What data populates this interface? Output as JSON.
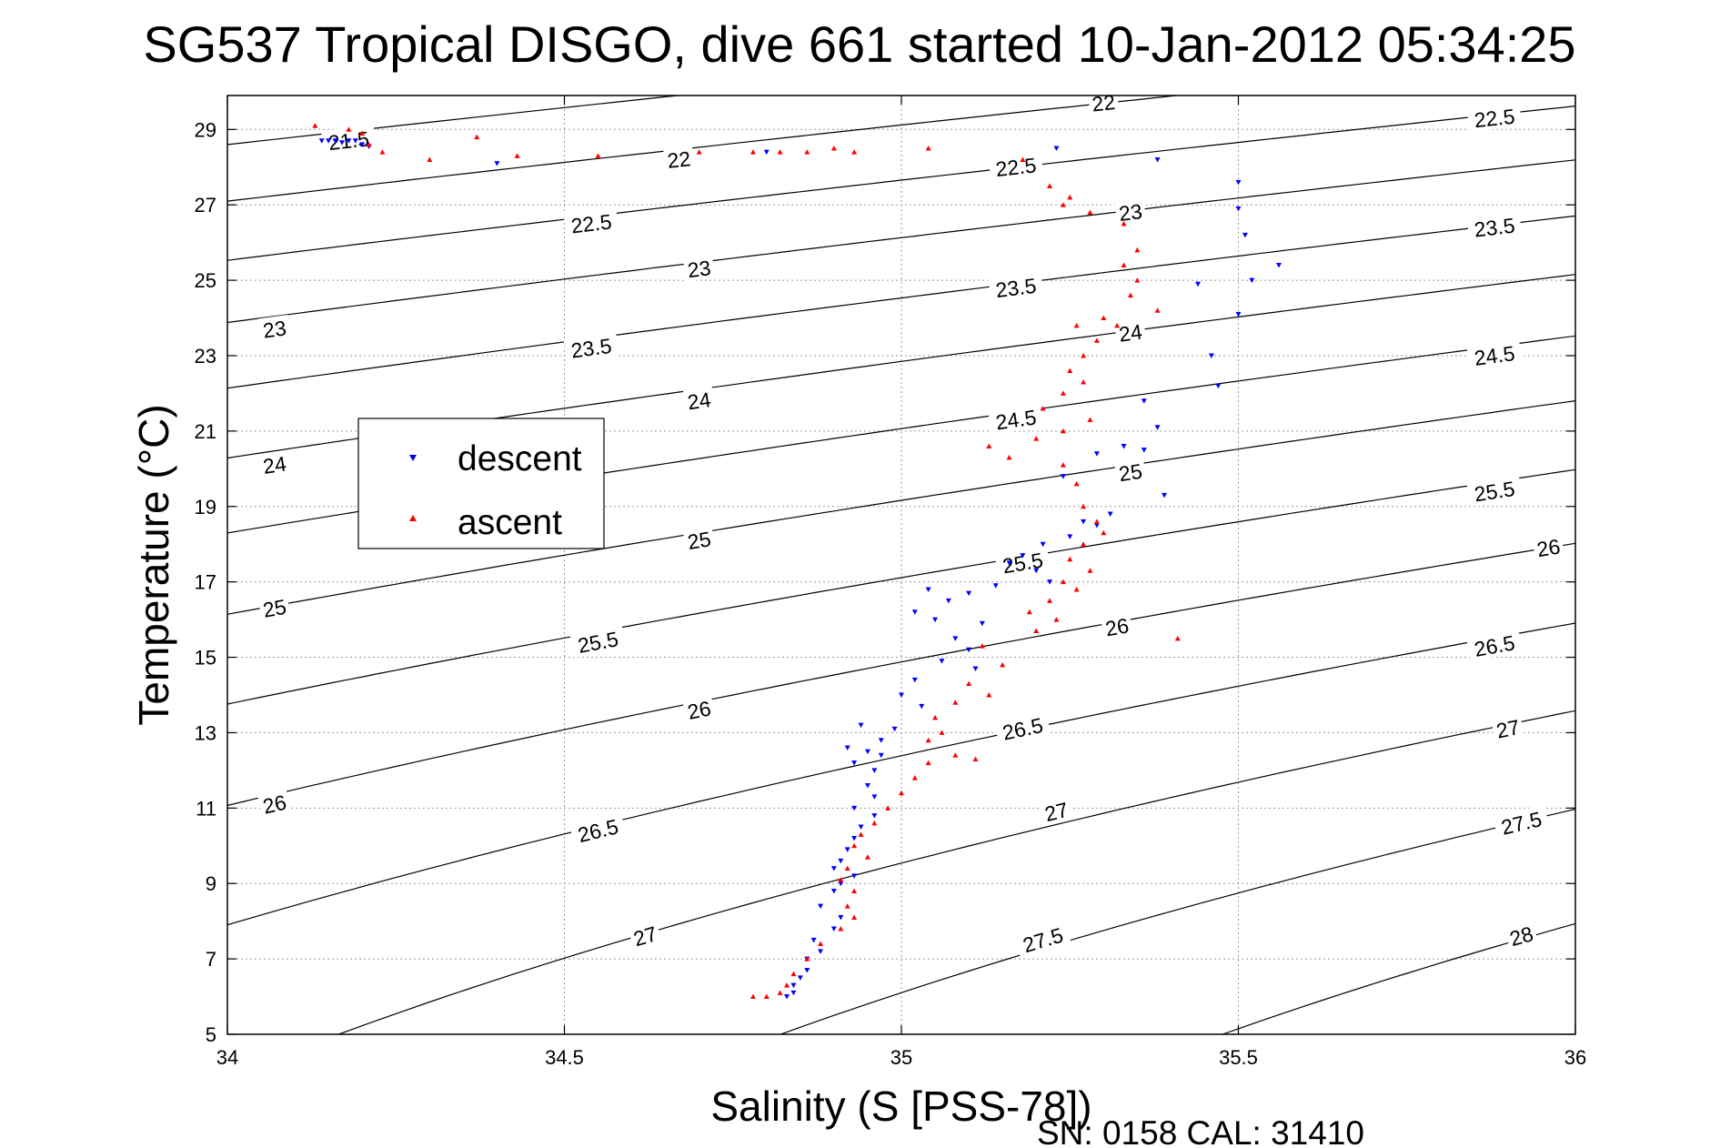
{
  "chart_data": {
    "type": "scatter",
    "title": "SG537 Tropical DISGO, dive 661 started 10-Jan-2012 05:34:25",
    "xlabel": "Salinity (S [PSS-78])",
    "ylabel": "Temperature (°C)",
    "xlim": [
      34,
      36
    ],
    "ylim": [
      5,
      29.9
    ],
    "x_ticks": [
      34,
      34.5,
      35,
      35.5,
      36
    ],
    "y_ticks": [
      5,
      7,
      9,
      11,
      13,
      15,
      17,
      19,
      21,
      23,
      25,
      27,
      29
    ],
    "grid": true,
    "legend_position": "left-middle",
    "footer": "SN: 0158  CAL: 31410",
    "colors": {
      "descent": "#0000ff",
      "ascent": "#ff0000",
      "contour": "#000000"
    },
    "isopycnals": [
      21.5,
      22,
      22.5,
      23,
      23.5,
      24,
      24.5,
      25,
      25.5,
      26,
      26.5,
      27,
      27.5,
      28
    ],
    "contour_labels": [
      {
        "text": "21.5",
        "s": 34.18,
        "t": 28.7
      },
      {
        "text": "22",
        "s": 34.67,
        "t": 28.2
      },
      {
        "text": "22",
        "s": 35.3,
        "t": 29.7
      },
      {
        "text": "22.5",
        "s": 34.54,
        "t": 26.5
      },
      {
        "text": "22.5",
        "s": 35.17,
        "t": 28.0
      },
      {
        "text": "22.5",
        "s": 35.88,
        "t": 29.3
      },
      {
        "text": "23",
        "s": 34.07,
        "t": 23.7
      },
      {
        "text": "23",
        "s": 34.7,
        "t": 25.3
      },
      {
        "text": "23",
        "s": 35.34,
        "t": 26.8
      },
      {
        "text": "23.5",
        "s": 34.54,
        "t": 23.2
      },
      {
        "text": "23.5",
        "s": 35.17,
        "t": 24.8
      },
      {
        "text": "23.5",
        "s": 35.88,
        "t": 26.4
      },
      {
        "text": "24",
        "s": 34.07,
        "t": 20.1
      },
      {
        "text": "24",
        "s": 34.7,
        "t": 21.8
      },
      {
        "text": "24",
        "s": 35.34,
        "t": 23.6
      },
      {
        "text": "24.5",
        "s": 35.17,
        "t": 21.3
      },
      {
        "text": "24.5",
        "s": 35.88,
        "t": 23.0
      },
      {
        "text": "25",
        "s": 34.07,
        "t": 16.3
      },
      {
        "text": "25",
        "s": 34.7,
        "t": 18.1
      },
      {
        "text": "25",
        "s": 35.34,
        "t": 19.9
      },
      {
        "text": "25.5",
        "s": 34.55,
        "t": 15.4
      },
      {
        "text": "25.5",
        "s": 35.18,
        "t": 17.5
      },
      {
        "text": "25.5",
        "s": 35.88,
        "t": 19.4
      },
      {
        "text": "26",
        "s": 34.07,
        "t": 11.1
      },
      {
        "text": "26",
        "s": 34.7,
        "t": 13.6
      },
      {
        "text": "26",
        "s": 35.32,
        "t": 15.8
      },
      {
        "text": "26",
        "s": 35.96,
        "t": 17.9
      },
      {
        "text": "26.5",
        "s": 34.55,
        "t": 10.4
      },
      {
        "text": "26.5",
        "s": 35.18,
        "t": 13.1
      },
      {
        "text": "26.5",
        "s": 35.88,
        "t": 15.3
      },
      {
        "text": "27",
        "s": 34.62,
        "t": 7.6
      },
      {
        "text": "27",
        "s": 35.23,
        "t": 10.9
      },
      {
        "text": "27",
        "s": 35.9,
        "t": 13.1
      },
      {
        "text": "27.5",
        "s": 35.21,
        "t": 7.5
      },
      {
        "text": "27.5",
        "s": 35.92,
        "t": 10.6
      },
      {
        "text": "28",
        "s": 35.92,
        "t": 7.6
      }
    ],
    "series": [
      {
        "name": "descent",
        "color": "#0000ff",
        "marker": "triangle-down",
        "points": [
          [
            34.14,
            28.7
          ],
          [
            34.15,
            28.7
          ],
          [
            34.16,
            28.7
          ],
          [
            34.17,
            28.65
          ],
          [
            34.18,
            28.7
          ],
          [
            34.19,
            28.7
          ],
          [
            34.2,
            28.6
          ],
          [
            34.21,
            28.55
          ],
          [
            34.4,
            28.1
          ],
          [
            34.8,
            28.4
          ],
          [
            35.23,
            28.5
          ],
          [
            35.38,
            28.2
          ],
          [
            35.5,
            27.6
          ],
          [
            35.5,
            26.9
          ],
          [
            35.51,
            26.2
          ],
          [
            35.56,
            25.4
          ],
          [
            35.52,
            25.0
          ],
          [
            35.44,
            24.9
          ],
          [
            35.5,
            24.1
          ],
          [
            35.46,
            23.0
          ],
          [
            35.47,
            22.2
          ],
          [
            35.36,
            21.8
          ],
          [
            35.38,
            21.1
          ],
          [
            35.36,
            20.5
          ],
          [
            35.33,
            20.6
          ],
          [
            35.29,
            20.4
          ],
          [
            35.39,
            19.3
          ],
          [
            35.24,
            19.8
          ],
          [
            35.27,
            18.6
          ],
          [
            35.31,
            18.8
          ],
          [
            35.29,
            18.5
          ],
          [
            35.25,
            18.2
          ],
          [
            35.21,
            18.0
          ],
          [
            35.18,
            17.7
          ],
          [
            35.16,
            17.5
          ],
          [
            35.2,
            17.3
          ],
          [
            35.22,
            17.0
          ],
          [
            35.14,
            16.9
          ],
          [
            35.1,
            16.7
          ],
          [
            35.07,
            16.5
          ],
          [
            35.04,
            16.8
          ],
          [
            35.02,
            16.2
          ],
          [
            35.05,
            16.0
          ],
          [
            35.12,
            15.9
          ],
          [
            35.08,
            15.5
          ],
          [
            35.1,
            15.2
          ],
          [
            35.06,
            14.9
          ],
          [
            35.11,
            14.7
          ],
          [
            35.02,
            14.4
          ],
          [
            35.0,
            14.0
          ],
          [
            35.03,
            13.7
          ],
          [
            34.94,
            13.2
          ],
          [
            34.99,
            13.1
          ],
          [
            34.97,
            12.8
          ],
          [
            34.92,
            12.6
          ],
          [
            34.95,
            12.5
          ],
          [
            34.97,
            12.4
          ],
          [
            34.93,
            12.2
          ],
          [
            34.96,
            12.0
          ],
          [
            34.95,
            11.6
          ],
          [
            34.96,
            11.3
          ],
          [
            34.93,
            11.0
          ],
          [
            34.96,
            10.8
          ],
          [
            34.94,
            10.5
          ],
          [
            34.93,
            10.2
          ],
          [
            34.92,
            9.9
          ],
          [
            34.91,
            9.6
          ],
          [
            34.9,
            9.4
          ],
          [
            34.93,
            9.2
          ],
          [
            34.91,
            9.0
          ],
          [
            34.9,
            8.8
          ],
          [
            34.88,
            8.4
          ],
          [
            34.91,
            8.1
          ],
          [
            34.9,
            7.8
          ],
          [
            34.87,
            7.5
          ],
          [
            34.88,
            7.2
          ],
          [
            34.86,
            7.0
          ],
          [
            34.86,
            6.7
          ],
          [
            34.85,
            6.5
          ],
          [
            34.84,
            6.3
          ],
          [
            34.84,
            6.1
          ],
          [
            34.83,
            6.0
          ]
        ]
      },
      {
        "name": "ascent",
        "color": "#ff0000",
        "marker": "triangle-up",
        "points": [
          [
            34.13,
            29.1
          ],
          [
            34.18,
            29.0
          ],
          [
            34.2,
            28.9
          ],
          [
            34.21,
            28.6
          ],
          [
            34.23,
            28.4
          ],
          [
            34.3,
            28.2
          ],
          [
            34.37,
            28.8
          ],
          [
            34.43,
            28.3
          ],
          [
            34.55,
            28.3
          ],
          [
            34.7,
            28.4
          ],
          [
            34.78,
            28.4
          ],
          [
            34.82,
            28.4
          ],
          [
            34.86,
            28.4
          ],
          [
            34.9,
            28.5
          ],
          [
            34.93,
            28.4
          ],
          [
            35.04,
            28.5
          ],
          [
            35.18,
            28.2
          ],
          [
            35.22,
            27.5
          ],
          [
            35.25,
            27.2
          ],
          [
            35.24,
            27.0
          ],
          [
            35.28,
            26.8
          ],
          [
            35.33,
            26.5
          ],
          [
            35.35,
            25.8
          ],
          [
            35.33,
            25.4
          ],
          [
            35.35,
            25.0
          ],
          [
            35.34,
            24.6
          ],
          [
            35.38,
            24.2
          ],
          [
            35.3,
            24.0
          ],
          [
            35.26,
            23.8
          ],
          [
            35.32,
            23.8
          ],
          [
            35.29,
            23.4
          ],
          [
            35.27,
            23.0
          ],
          [
            35.25,
            22.6
          ],
          [
            35.27,
            22.3
          ],
          [
            35.24,
            22.0
          ],
          [
            35.21,
            21.6
          ],
          [
            35.28,
            21.3
          ],
          [
            35.24,
            21.0
          ],
          [
            35.2,
            20.8
          ],
          [
            35.13,
            20.6
          ],
          [
            35.16,
            20.3
          ],
          [
            35.24,
            20.1
          ],
          [
            35.26,
            19.6
          ],
          [
            35.27,
            19.0
          ],
          [
            35.29,
            18.6
          ],
          [
            35.3,
            18.3
          ],
          [
            35.27,
            18.0
          ],
          [
            35.25,
            17.6
          ],
          [
            35.28,
            17.3
          ],
          [
            35.24,
            17.0
          ],
          [
            35.26,
            16.8
          ],
          [
            35.22,
            16.5
          ],
          [
            35.19,
            16.2
          ],
          [
            35.23,
            16.0
          ],
          [
            35.2,
            15.7
          ],
          [
            35.41,
            15.5
          ],
          [
            35.12,
            15.3
          ],
          [
            35.15,
            14.8
          ],
          [
            35.1,
            14.3
          ],
          [
            35.13,
            14.0
          ],
          [
            35.08,
            13.8
          ],
          [
            35.05,
            13.4
          ],
          [
            35.06,
            13.0
          ],
          [
            35.04,
            12.8
          ],
          [
            35.08,
            12.4
          ],
          [
            35.11,
            12.3
          ],
          [
            35.04,
            12.2
          ],
          [
            35.02,
            11.8
          ],
          [
            35.0,
            11.4
          ],
          [
            34.98,
            11.0
          ],
          [
            34.96,
            10.6
          ],
          [
            34.94,
            10.3
          ],
          [
            34.93,
            10.0
          ],
          [
            34.95,
            9.7
          ],
          [
            34.92,
            9.4
          ],
          [
            34.91,
            9.1
          ],
          [
            34.93,
            8.8
          ],
          [
            34.92,
            8.4
          ],
          [
            34.93,
            8.1
          ],
          [
            34.91,
            7.8
          ],
          [
            34.88,
            7.4
          ],
          [
            34.86,
            7.0
          ],
          [
            34.84,
            6.6
          ],
          [
            34.83,
            6.3
          ],
          [
            34.8,
            6.0
          ],
          [
            34.78,
            6.0
          ],
          [
            34.82,
            6.1
          ]
        ]
      }
    ]
  }
}
